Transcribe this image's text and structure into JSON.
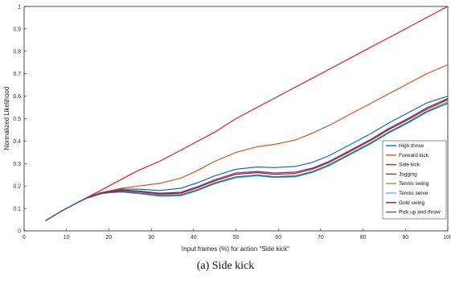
{
  "caption": "(a) Side kick",
  "chart_data": {
    "type": "line",
    "title": "",
    "xlabel": "Input frames (%) for action \"Side kick\"",
    "ylabel": "Normalized Likelihood",
    "xlim": [
      0,
      100
    ],
    "ylim": [
      0,
      1
    ],
    "xticks": [
      0,
      10,
      20,
      30,
      40,
      50,
      60,
      70,
      80,
      90,
      100
    ],
    "yticks": [
      0,
      0.1,
      0.2,
      0.3,
      0.4,
      0.5,
      0.6,
      0.7,
      0.8,
      0.9,
      1
    ],
    "grid": false,
    "legend_position": "lower-right",
    "x": [
      5,
      9,
      13,
      15,
      18,
      20,
      23,
      27,
      32,
      37,
      41,
      45,
      50,
      55,
      59,
      64,
      68,
      72,
      77,
      82,
      86,
      91,
      95,
      100
    ],
    "series": [
      {
        "name": "High throw",
        "color": "#0072bd",
        "values": [
          0.045,
          0.09,
          0.13,
          0.148,
          0.17,
          0.176,
          0.186,
          0.186,
          0.18,
          0.19,
          0.215,
          0.245,
          0.275,
          0.285,
          0.282,
          0.287,
          0.305,
          0.335,
          0.385,
          0.435,
          0.48,
          0.53,
          0.57,
          0.6
        ]
      },
      {
        "name": "Forward kick",
        "color": "#d95319",
        "values": [
          0.045,
          0.09,
          0.13,
          0.15,
          0.17,
          0.178,
          0.19,
          0.2,
          0.212,
          0.235,
          0.27,
          0.31,
          0.35,
          0.375,
          0.385,
          0.405,
          0.435,
          0.47,
          0.52,
          0.57,
          0.61,
          0.66,
          0.7,
          0.74
        ]
      },
      {
        "name": "Side kick",
        "color": "#e31a1c",
        "values": [
          0.045,
          0.09,
          0.13,
          0.15,
          0.18,
          0.2,
          0.23,
          0.27,
          0.31,
          0.36,
          0.4,
          0.44,
          0.5,
          0.55,
          0.59,
          0.64,
          0.68,
          0.72,
          0.77,
          0.82,
          0.86,
          0.91,
          0.95,
          1.0
        ]
      },
      {
        "name": "Jogging",
        "color": "#7e2f8e",
        "values": [
          0.045,
          0.09,
          0.13,
          0.148,
          0.168,
          0.175,
          0.182,
          0.178,
          0.168,
          0.172,
          0.198,
          0.228,
          0.258,
          0.265,
          0.258,
          0.262,
          0.28,
          0.31,
          0.36,
          0.41,
          0.456,
          0.505,
          0.548,
          0.59
        ]
      },
      {
        "name": "Tennis swing",
        "color": "#77ac30",
        "values": [
          0.045,
          0.09,
          0.13,
          0.147,
          0.166,
          0.172,
          0.176,
          0.17,
          0.16,
          0.162,
          0.185,
          0.215,
          0.24,
          0.25,
          0.242,
          0.246,
          0.265,
          0.295,
          0.345,
          0.395,
          0.44,
          0.49,
          0.533,
          0.575
        ]
      },
      {
        "name": "Tennis serve",
        "color": "#4dbeee",
        "values": [
          0.045,
          0.09,
          0.13,
          0.147,
          0.165,
          0.17,
          0.173,
          0.166,
          0.154,
          0.156,
          0.18,
          0.21,
          0.236,
          0.245,
          0.238,
          0.24,
          0.26,
          0.29,
          0.34,
          0.39,
          0.435,
          0.484,
          0.528,
          0.57
        ]
      },
      {
        "name": "Gold swing",
        "color": "#a2142f",
        "values": [
          0.045,
          0.09,
          0.13,
          0.148,
          0.167,
          0.174,
          0.18,
          0.175,
          0.165,
          0.168,
          0.193,
          0.223,
          0.252,
          0.26,
          0.252,
          0.256,
          0.275,
          0.305,
          0.355,
          0.405,
          0.45,
          0.5,
          0.542,
          0.585
        ]
      },
      {
        "name": "Pick up and throw",
        "color": "#2b5fa8",
        "values": [
          0.045,
          0.09,
          0.13,
          0.147,
          0.165,
          0.171,
          0.174,
          0.168,
          0.157,
          0.159,
          0.182,
          0.212,
          0.24,
          0.248,
          0.24,
          0.243,
          0.262,
          0.292,
          0.342,
          0.392,
          0.437,
          0.487,
          0.53,
          0.568
        ]
      }
    ]
  }
}
